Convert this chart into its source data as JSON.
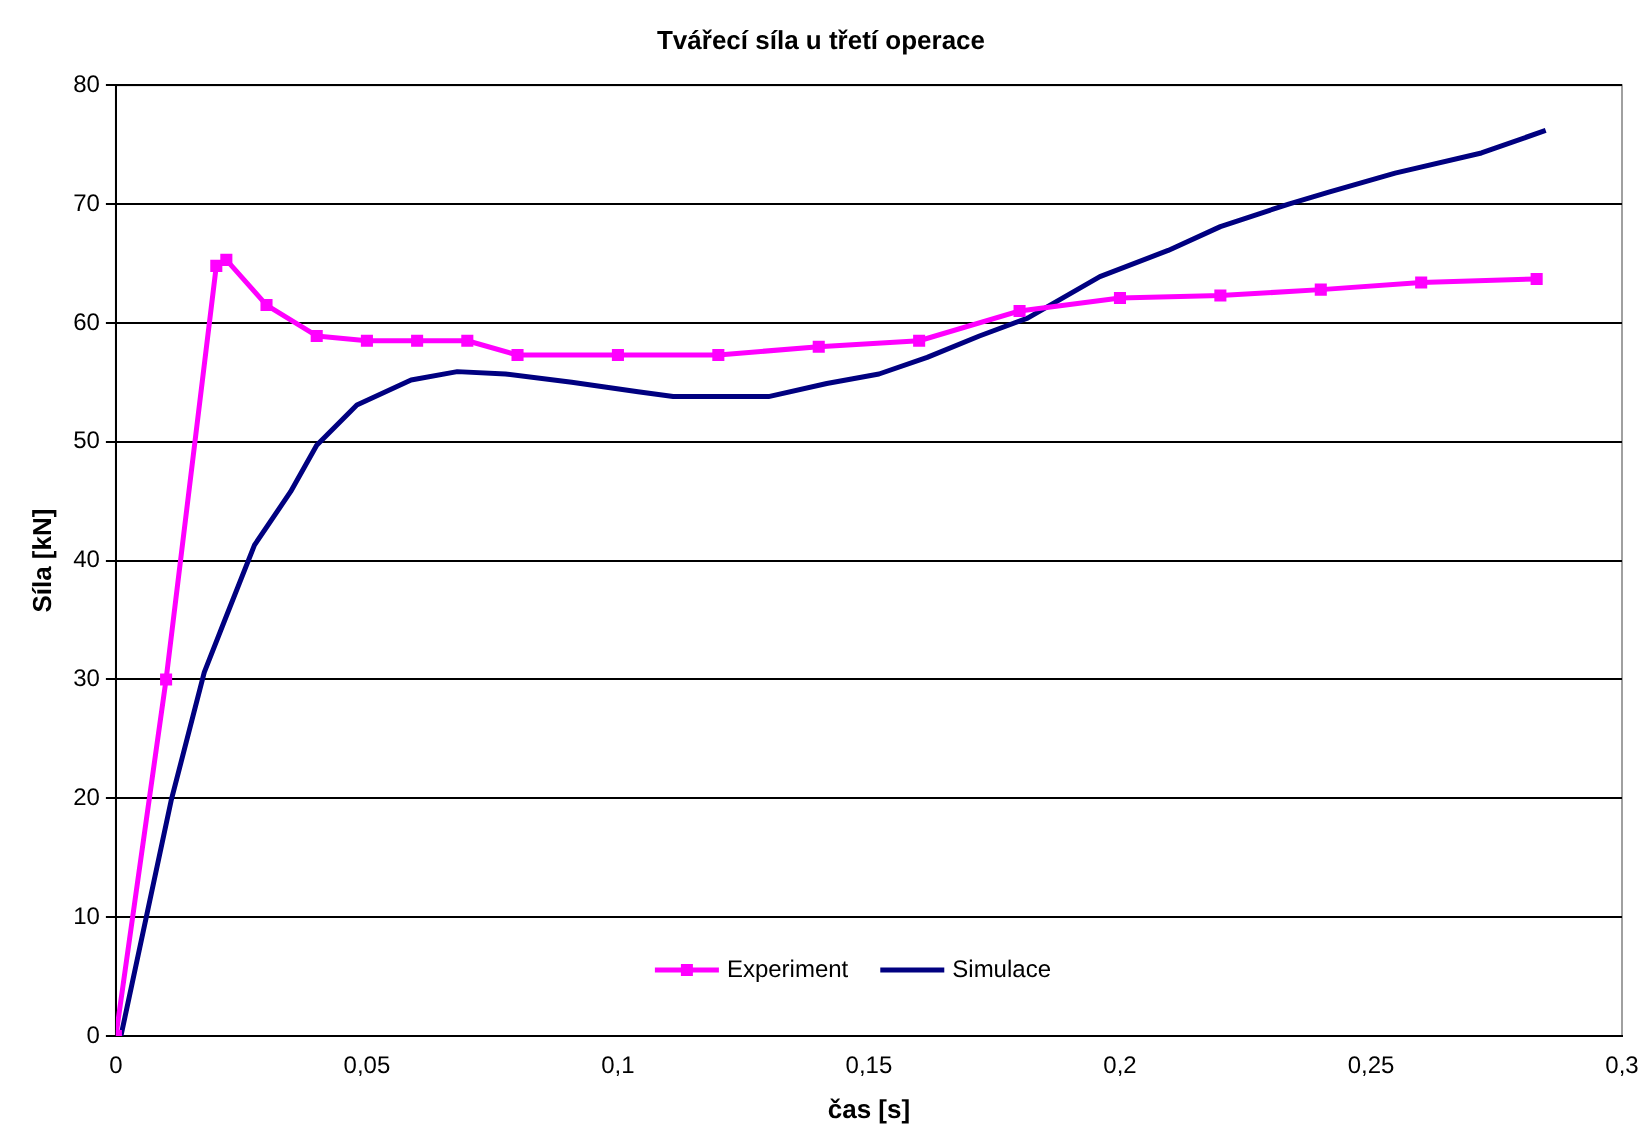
{
  "chart_data": {
    "type": "line",
    "title": "Tvářecí síla u třetí operace",
    "xlabel": "čas [s]",
    "ylabel": "Síla [kN]",
    "xlim": [
      0,
      0.3
    ],
    "xticks": [
      0,
      {
        "value": 0.05,
        "label": "0,05"
      },
      {
        "value": 0.1,
        "label": "0,1"
      },
      {
        "value": 0.15,
        "label": "0,15"
      },
      {
        "value": 0.2,
        "label": "0,2"
      },
      {
        "value": 0.25,
        "label": "0,25"
      },
      {
        "value": 0.3,
        "label": "0,3"
      }
    ],
    "ylim": [
      0,
      80
    ],
    "yticks": [
      0,
      10,
      20,
      30,
      40,
      50,
      60,
      70,
      80
    ],
    "grid": "y",
    "legend": "bottom",
    "series": [
      {
        "name": "Experiment",
        "color": "#ff00ff",
        "marker": "square",
        "x": [
          0,
          0.01,
          0.02,
          0.022,
          0.03,
          0.04,
          0.05,
          0.06,
          0.07,
          0.08,
          0.1,
          0.12,
          0.14,
          0.16,
          0.18,
          0.2,
          0.22,
          0.24,
          0.26,
          0.283
        ],
        "values": [
          0,
          30,
          64.8,
          65.3,
          61.5,
          58.9,
          58.5,
          58.5,
          58.5,
          57.3,
          57.3,
          57.3,
          58,
          58.5,
          61,
          62.1,
          62.3,
          62.8,
          63.4,
          63.7
        ]
      },
      {
        "name": "Simulace",
        "color": "#000080",
        "marker": "none",
        "x": [
          0.001,
          0.011,
          0.0176,
          0.0216,
          0.0276,
          0.0348,
          0.04,
          0.048,
          0.0588,
          0.068,
          0.0776,
          0.0908,
          0.104,
          0.111,
          0.13,
          0.1416,
          0.152,
          0.1616,
          0.172,
          0.1816,
          0.196,
          0.2096,
          0.22,
          0.2336,
          0.2416,
          0.2548,
          0.272,
          0.2848
        ],
        "values": [
          0,
          19.8,
          30.6,
          34.9,
          41.3,
          45.8,
          49.7,
          53.1,
          55.2,
          55.9,
          55.7,
          55,
          54.2,
          53.8,
          53.8,
          54.9,
          55.7,
          57.1,
          58.9,
          60.4,
          63.9,
          66.1,
          68.1,
          70,
          71,
          72.6,
          74.3,
          76.2
        ]
      }
    ]
  }
}
